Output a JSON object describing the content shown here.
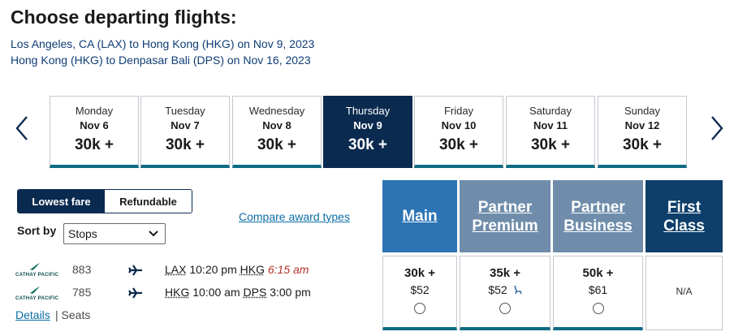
{
  "header": {
    "title": "Choose departing flights:",
    "itinerary": [
      "Los Angeles, CA (LAX) to Hong Kong (HKG) on Nov 9, 2023",
      "Hong Kong (HKG) to Denpasar Bali (DPS) on Nov 16, 2023"
    ]
  },
  "dates": [
    {
      "dow": "Monday",
      "day": "Nov 6",
      "price": "30k +"
    },
    {
      "dow": "Tuesday",
      "day": "Nov 7",
      "price": "30k +"
    },
    {
      "dow": "Wednesday",
      "day": "Nov 8",
      "price": "30k +"
    },
    {
      "dow": "Thursday",
      "day": "Nov 9",
      "price": "30k +"
    },
    {
      "dow": "Friday",
      "day": "Nov 10",
      "price": "30k +"
    },
    {
      "dow": "Saturday",
      "day": "Nov 11",
      "price": "30k +"
    },
    {
      "dow": "Sunday",
      "day": "Nov 12",
      "price": "30k +"
    }
  ],
  "selected_date_index": 3,
  "fare_toggle": {
    "lowest": "Lowest fare",
    "refundable": "Refundable",
    "active": "lowest"
  },
  "sort": {
    "label": "Sort by",
    "value": "Stops"
  },
  "compare_link": "Compare award types",
  "cabins": {
    "main": "Main",
    "partner_premium": "Partner Premium",
    "partner_business": "Partner Business",
    "first_class": "First Class"
  },
  "flight": {
    "airline": "CATHAY PACIFIC",
    "segments": [
      {
        "number": "883",
        "from": "LAX",
        "depart": "10:20 pm",
        "to": "HKG",
        "arrive": "6:15 am"
      },
      {
        "number": "785",
        "from": "HKG",
        "depart": "10:00 am",
        "to": "DPS",
        "arrive": "3:00 pm"
      }
    ],
    "details": "Details",
    "separator": "|",
    "seats": "Seats",
    "fares": {
      "main": {
        "points": "30k +",
        "cash": "$52"
      },
      "partner_premium": {
        "points": "35k +",
        "cash": "$52"
      },
      "partner_business": {
        "points": "50k +",
        "cash": "$61"
      },
      "first_class": {
        "na": "N/A"
      }
    }
  },
  "icons": {
    "prev": "chevron-left-icon",
    "next": "chevron-right-icon",
    "plane": "airplane-icon",
    "seat": "seat-icon",
    "dropdown": "chevron-down-icon"
  },
  "colors": {
    "navy": "#0b2a4f",
    "main_cabin": "#2c74b3",
    "partner_cabin": "#6f8dab",
    "first_cabin": "#0e3f6b",
    "link": "#0c6fa6",
    "late_arrival": "#b0322a",
    "teal_accent": "#0e6b83"
  }
}
